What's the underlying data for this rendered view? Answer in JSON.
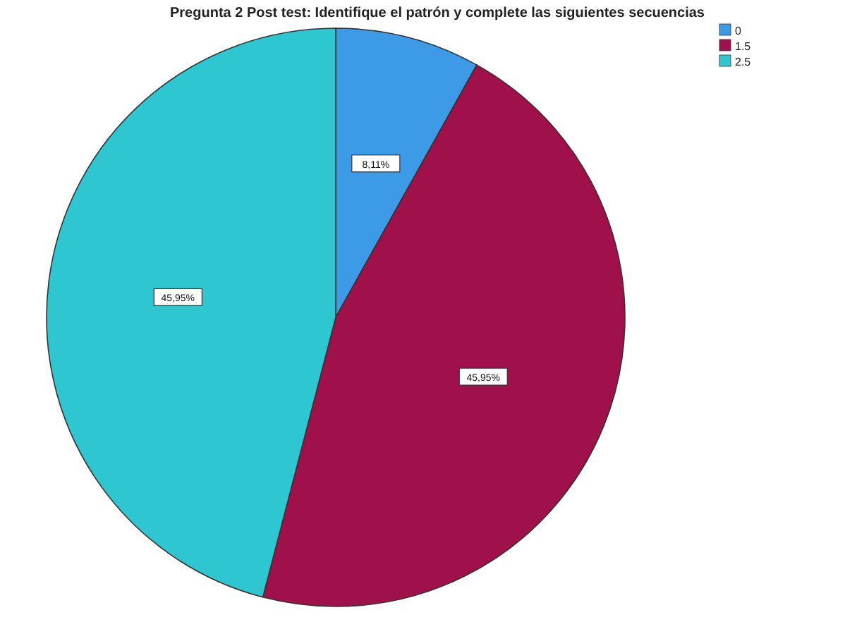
{
  "chart_data": {
    "type": "pie",
    "title": "Pregunta 2 Post test: Identifique el patrón y complete las siguientes secuencias",
    "categories": [
      "0",
      "1.5",
      "2.5"
    ],
    "values": [
      8.11,
      45.95,
      45.95
    ],
    "value_labels": [
      "8,11%",
      "45,95%",
      "45,95%"
    ],
    "colors": [
      "#3c9ae6",
      "#a0104a",
      "#2ec6d0"
    ],
    "legend": "top right"
  }
}
